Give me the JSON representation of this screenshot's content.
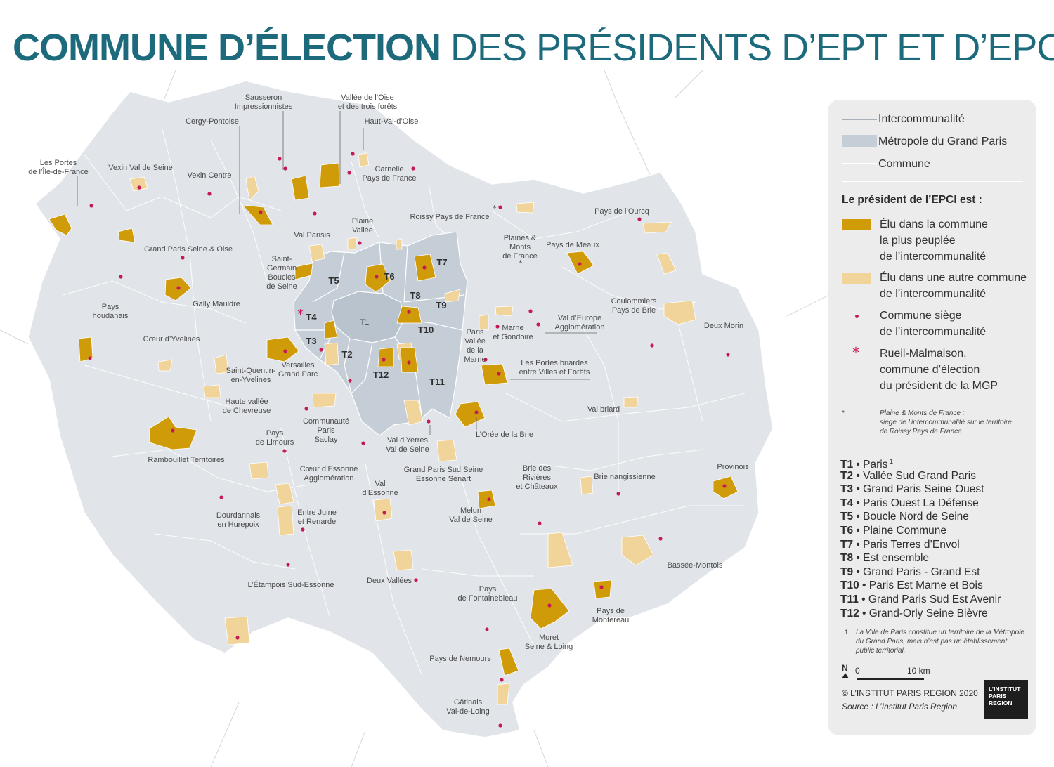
{
  "title": {
    "bold": "COMMUNE D’ÉLECTION",
    "regular": "DES PRÉSIDENTS D’EPT ET D’EPCI"
  },
  "colors": {
    "background": "#ffffff",
    "region_fill": "#e1e5ea",
    "mgp_fill": "#c5ced7",
    "elected_populous": "#d09b08",
    "elected_other": "#f0d49a",
    "seat_dot": "#c51a56",
    "title": "#1c6a7c",
    "legend_bg": "#ececec"
  },
  "legend": {
    "line_items": [
      {
        "icon": "line-thin-gray-icon",
        "label": "Intercommunalité"
      },
      {
        "icon": "gray-block-icon",
        "label": "Métropole du Grand Paris"
      },
      {
        "icon": "line-white-icon",
        "label": "Commune"
      }
    ],
    "heading": "Le président de l’EPCI est :",
    "items": [
      {
        "icon": "swatch-dark-gold-icon",
        "lines": [
          "Élu dans la commune",
          "la plus peuplée",
          "de l’intercommunalité"
        ]
      },
      {
        "icon": "swatch-light-gold-icon",
        "lines": [
          "Élu dans une autre commune",
          "de l’intercommunalité"
        ]
      },
      {
        "icon": "red-dot-icon",
        "lines": [
          "Commune siège",
          "de l’intercommunalité"
        ]
      },
      {
        "icon": "red-asterisk-icon",
        "lines": [
          "Rueil-Malmaison,",
          "commune d’élection",
          "du président de la MGP"
        ]
      }
    ],
    "note": {
      "marker": "*",
      "lines": [
        "Plaine & Monts de France :",
        "siège de l’intercommunalité sur le territoire",
        "de Roissy Pays de France"
      ]
    },
    "ept_list": [
      {
        "code": "T1",
        "name": "Paris",
        "sup": "1"
      },
      {
        "code": "T2",
        "name": "Vallée Sud Grand Paris"
      },
      {
        "code": "T3",
        "name": "Grand Paris Seine Ouest"
      },
      {
        "code": "T4",
        "name": "Paris Ouest La Défense"
      },
      {
        "code": "T5",
        "name": "Boucle Nord de Seine"
      },
      {
        "code": "T6",
        "name": "Plaine Commune"
      },
      {
        "code": "T7",
        "name": "Paris Terres d’Envol"
      },
      {
        "code": "T8",
        "name": "Est ensemble"
      },
      {
        "code": "T9",
        "name": "Grand Paris - Grand Est"
      },
      {
        "code": "T10",
        "name": "Paris Est Marne et Bois"
      },
      {
        "code": "T11",
        "name": "Grand Paris Sud Est Avenir"
      },
      {
        "code": "T12",
        "name": "Grand-Orly Seine Bièvre"
      }
    ],
    "footnote": {
      "marker": "1",
      "lines": [
        "La Ville de Paris constitue un territoire de la Métropole",
        "du Grand Paris, mais n’est pas un établissement",
        "public territorial."
      ]
    },
    "scale": {
      "north": "N",
      "zero": "0",
      "end": "10 km"
    },
    "copyright": "© L’INSTITUT PARIS REGION 2020",
    "source": "Source : L’Institut Paris Region",
    "logo_lines": [
      "L’INSTITUT",
      "PARIS",
      "REGION"
    ]
  },
  "map_labels": [
    {
      "lines": [
        "Sausseron",
        "Impressionnistes"
      ]
    },
    {
      "lines": [
        "Vallée de l’Oise",
        "et des trois forêts"
      ]
    },
    {
      "lines": [
        "Haut-Val-d’Oise"
      ]
    },
    {
      "lines": [
        "Cergy-Pontoise"
      ]
    },
    {
      "lines": [
        "Les Portes",
        "de l’Île-de-France"
      ]
    },
    {
      "lines": [
        "Vexin Val de Seine"
      ]
    },
    {
      "lines": [
        "Vexin Centre"
      ]
    },
    {
      "lines": [
        "Carnelle",
        "Pays de France"
      ]
    },
    {
      "lines": [
        "Roissy Pays de France"
      ]
    },
    {
      "lines": [
        "Pays de l’Ourcq"
      ]
    },
    {
      "lines": [
        "Plaine",
        "Vallée"
      ]
    },
    {
      "lines": [
        "Val Parisis"
      ]
    },
    {
      "lines": [
        "Plaines &",
        "Monts",
        "de France"
      ]
    },
    {
      "lines": [
        "Pays de Meaux"
      ]
    },
    {
      "lines": [
        "Grand Paris Seine & Oise"
      ]
    },
    {
      "lines": [
        "Saint-",
        "Germain",
        "Boucles",
        "de Seine"
      ]
    },
    {
      "lines": [
        "Gally Mauldre"
      ]
    },
    {
      "lines": [
        "Pays",
        "houdanais"
      ]
    },
    {
      "lines": [
        "Coulommiers",
        "Pays de Brie"
      ]
    },
    {
      "lines": [
        "Val d’Europe",
        "Agglomération"
      ]
    },
    {
      "lines": [
        "Paris",
        "Vallée",
        "de la",
        "Marne"
      ]
    },
    {
      "lines": [
        "Marne",
        "et Gondoire"
      ]
    },
    {
      "lines": [
        "Deux Morin"
      ]
    },
    {
      "lines": [
        "Cœur d’Yvelines"
      ]
    },
    {
      "lines": [
        "Versailles",
        "Grand Parc"
      ]
    },
    {
      "lines": [
        "Saint-Quentin-",
        "en-Yvelines"
      ]
    },
    {
      "lines": [
        "Les Portes briardes",
        "entre Villes et Forêts"
      ]
    },
    {
      "lines": [
        "Haute vallée",
        "de Chevreuse"
      ]
    },
    {
      "lines": [
        "Val briard"
      ]
    },
    {
      "lines": [
        "Communauté",
        "Paris",
        "Saclay"
      ]
    },
    {
      "lines": [
        "Pays",
        "de Limours"
      ]
    },
    {
      "lines": [
        "Val d’Yerres",
        "Val de Seine"
      ]
    },
    {
      "lines": [
        "L’Orée de la Brie"
      ]
    },
    {
      "lines": [
        "Rambouillet Territoires"
      ]
    },
    {
      "lines": [
        "Grand Paris Sud Seine",
        "Essonne Sénart"
      ]
    },
    {
      "lines": [
        "Cœur d’Essonne",
        "Agglomération"
      ]
    },
    {
      "lines": [
        "Brie des",
        "Rivières",
        "et Châteaux"
      ]
    },
    {
      "lines": [
        "Brie nangissienne"
      ]
    },
    {
      "lines": [
        "Provinois"
      ]
    },
    {
      "lines": [
        "Val",
        "d’Essonne"
      ]
    },
    {
      "lines": [
        "Melun",
        "Val de Seine"
      ]
    },
    {
      "lines": [
        "Dourdannais",
        "en Hurepoix"
      ]
    },
    {
      "lines": [
        "Entre Juine",
        "et Renarde"
      ]
    },
    {
      "lines": [
        "Bassée-Montois"
      ]
    },
    {
      "lines": [
        "L’Étampois Sud-Essonne"
      ]
    },
    {
      "lines": [
        "Deux Vallées"
      ]
    },
    {
      "lines": [
        "Pays",
        "de Fontainebleau"
      ]
    },
    {
      "lines": [
        "Pays de",
        "Montereau"
      ]
    },
    {
      "lines": [
        "Moret",
        "Seine & Loing"
      ]
    },
    {
      "lines": [
        "Pays de Nemours"
      ]
    },
    {
      "lines": [
        "Gâtinais",
        "Val-de-Loing"
      ]
    }
  ],
  "ept_labels": [
    "T1",
    "T2",
    "T3",
    "T4",
    "T5",
    "T6",
    "T7",
    "T8",
    "T9",
    "T10",
    "T11",
    "T12"
  ]
}
